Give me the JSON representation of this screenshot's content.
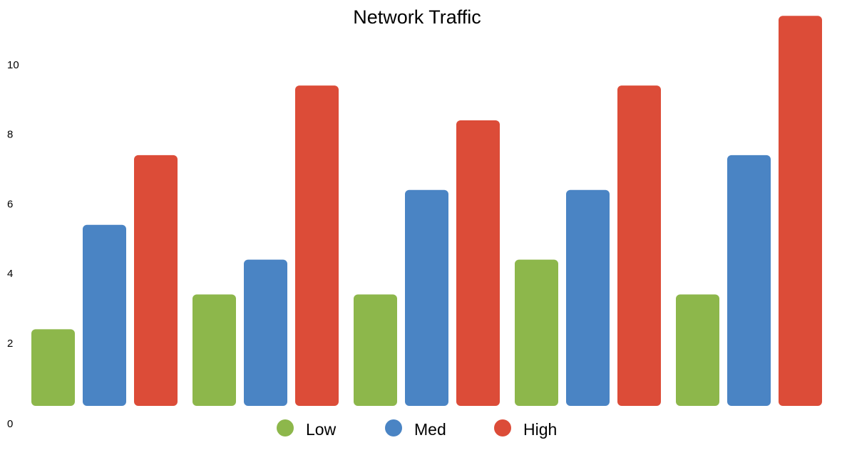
{
  "chart_data": {
    "type": "bar",
    "title": "Network Traffic",
    "xlabel": "",
    "ylabel": "",
    "categories": [
      "",
      "",
      "",
      "",
      ""
    ],
    "series": [
      {
        "name": "Low",
        "color": "#8db74b",
        "values": [
          2,
          3,
          3,
          4,
          3
        ]
      },
      {
        "name": "Med",
        "color": "#4a84c4",
        "values": [
          5,
          4,
          6,
          6,
          7
        ]
      },
      {
        "name": "High",
        "color": "#dc4c38",
        "values": [
          7,
          9,
          8,
          9,
          11
        ]
      }
    ],
    "ylim": [
      0,
      11
    ],
    "yticks": [
      0,
      2,
      4,
      6,
      8,
      10
    ],
    "grid": false,
    "legend_position": "bottom"
  }
}
